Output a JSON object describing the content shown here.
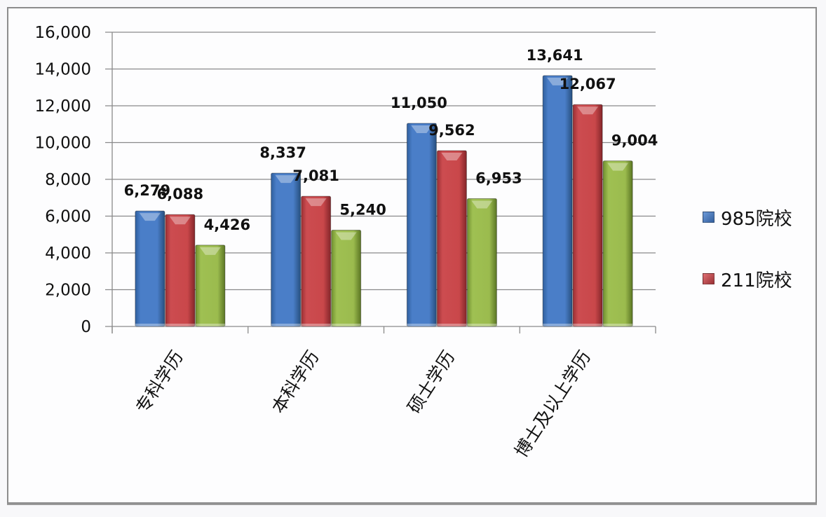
{
  "chart_data": {
    "type": "bar",
    "title": "",
    "xlabel": "",
    "ylabel": "",
    "ylim": [
      0,
      16000
    ],
    "yticks": [
      "0",
      "2,000",
      "4,000",
      "6,000",
      "8,000",
      "10,000",
      "12,000",
      "14,000",
      "16,000"
    ],
    "grid": true,
    "legend_position": "right",
    "categories": [
      "专科学历",
      "本科学历",
      "硕士学历",
      "博士及以上学历"
    ],
    "series": [
      {
        "name": "985院校",
        "color": "#4a7ec8",
        "values": [
          6279,
          8337,
          11050,
          13641
        ],
        "labels": [
          "6,279",
          "8,337",
          "11,050",
          "13,641"
        ]
      },
      {
        "name": "211院校",
        "color": "#c9474a",
        "values": [
          6088,
          7081,
          9562,
          12067
        ],
        "labels": [
          "6,088",
          "7,081",
          "9,562",
          "12,067"
        ]
      },
      {
        "name": "",
        "color": "#9bbb4e",
        "values": [
          4426,
          5240,
          6953,
          9004
        ],
        "labels": [
          "4,426",
          "5,240",
          "6,953",
          "9,004"
        ]
      }
    ]
  },
  "legend": {
    "items": [
      {
        "label": "985院校",
        "color": "#4a7ec8"
      },
      {
        "label": "211院校",
        "color": "#c9474a"
      }
    ]
  }
}
